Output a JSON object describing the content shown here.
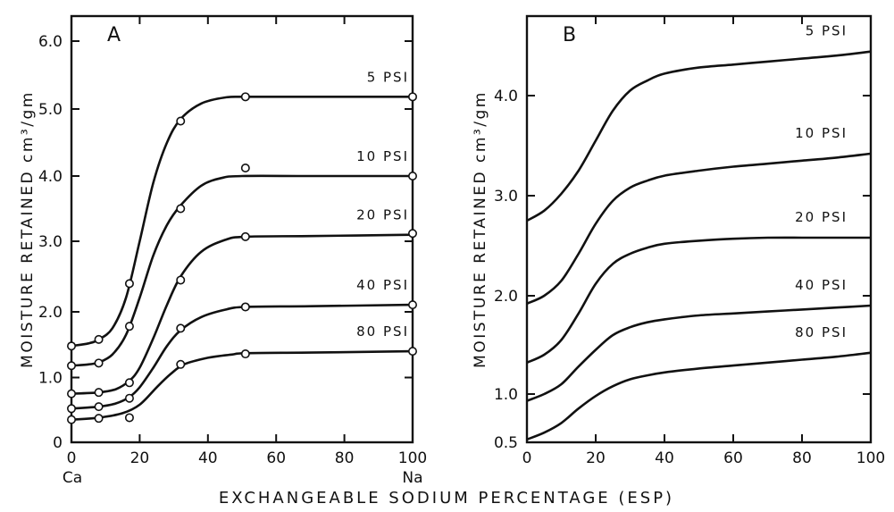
{
  "figure": {
    "xlabel": "EXCHANGEABLE SODIUM PERCENTAGE (ESP)"
  },
  "chart_data": [
    {
      "type": "line",
      "panel_label": "A",
      "ylabel": "MOISTURE RETAINED cm³/gm",
      "xlim": [
        0,
        100
      ],
      "ylim": [
        0,
        6.5
      ],
      "x_ticks": [
        0,
        20,
        40,
        60,
        80,
        100
      ],
      "x_tick_labels": [
        "0",
        "20",
        "40",
        "60",
        "80",
        "100"
      ],
      "x_end_labels": {
        "left": "Ca",
        "right": "Na"
      },
      "y_ticks": [
        0,
        1,
        2,
        3,
        4,
        5,
        6
      ],
      "y_tick_labels": [
        "0",
        "1.0",
        "2.0",
        "3.0",
        "4.0",
        "5.0",
        "6.0"
      ],
      "grid": false,
      "series": [
        {
          "name": "5 PSI",
          "points": [
            [
              0,
              1.48
            ],
            [
              8,
              1.58
            ],
            [
              17,
              2.4
            ],
            [
              32,
              4.82
            ],
            [
              51,
              5.18
            ],
            [
              100,
              5.18
            ]
          ],
          "curve": [
            [
              0,
              1.48
            ],
            [
              5,
              1.52
            ],
            [
              8,
              1.58
            ],
            [
              12,
              1.75
            ],
            [
              16,
              2.2
            ],
            [
              20,
              3.0
            ],
            [
              24,
              3.9
            ],
            [
              28,
              4.5
            ],
            [
              32,
              4.85
            ],
            [
              38,
              5.08
            ],
            [
              45,
              5.17
            ],
            [
              51,
              5.18
            ],
            [
              70,
              5.18
            ],
            [
              100,
              5.18
            ]
          ]
        },
        {
          "name": "10 PSI",
          "points": [
            [
              0,
              1.18
            ],
            [
              8,
              1.22
            ],
            [
              17,
              1.78
            ],
            [
              32,
              3.5
            ],
            [
              51,
              4.12
            ],
            [
              100,
              4.0
            ]
          ],
          "curve": [
            [
              0,
              1.18
            ],
            [
              5,
              1.2
            ],
            [
              8,
              1.23
            ],
            [
              12,
              1.35
            ],
            [
              16,
              1.65
            ],
            [
              20,
              2.2
            ],
            [
              24,
              2.8
            ],
            [
              28,
              3.25
            ],
            [
              32,
              3.55
            ],
            [
              38,
              3.85
            ],
            [
              44,
              3.97
            ],
            [
              50,
              4.0
            ],
            [
              70,
              4.0
            ],
            [
              100,
              4.0
            ]
          ]
        },
        {
          "name": "20 PSI",
          "points": [
            [
              0,
              0.75
            ],
            [
              8,
              0.77
            ],
            [
              17,
              0.92
            ],
            [
              32,
              2.45
            ],
            [
              51,
              3.07
            ],
            [
              100,
              3.12
            ]
          ],
          "curve": [
            [
              0,
              0.75
            ],
            [
              8,
              0.77
            ],
            [
              13,
              0.82
            ],
            [
              17,
              0.95
            ],
            [
              20,
              1.15
            ],
            [
              24,
              1.6
            ],
            [
              28,
              2.1
            ],
            [
              32,
              2.5
            ],
            [
              38,
              2.85
            ],
            [
              45,
              3.02
            ],
            [
              51,
              3.07
            ],
            [
              70,
              3.08
            ],
            [
              100,
              3.1
            ]
          ]
        },
        {
          "name": "40 PSI",
          "points": [
            [
              0,
              0.52
            ],
            [
              8,
              0.55
            ],
            [
              17,
              0.68
            ],
            [
              32,
              1.75
            ],
            [
              51,
              2.07
            ],
            [
              100,
              2.1
            ]
          ],
          "curve": [
            [
              0,
              0.52
            ],
            [
              8,
              0.55
            ],
            [
              13,
              0.6
            ],
            [
              17,
              0.7
            ],
            [
              20,
              0.85
            ],
            [
              24,
              1.15
            ],
            [
              28,
              1.48
            ],
            [
              32,
              1.72
            ],
            [
              38,
              1.92
            ],
            [
              45,
              2.03
            ],
            [
              51,
              2.07
            ],
            [
              70,
              2.08
            ],
            [
              100,
              2.1
            ]
          ]
        },
        {
          "name": "80 PSI",
          "points": [
            [
              0,
              0.35
            ],
            [
              8,
              0.37
            ],
            [
              17,
              0.38
            ],
            [
              32,
              1.2
            ],
            [
              51,
              1.36
            ],
            [
              100,
              1.4
            ]
          ],
          "curve": [
            [
              0,
              0.35
            ],
            [
              8,
              0.38
            ],
            [
              15,
              0.45
            ],
            [
              20,
              0.58
            ],
            [
              25,
              0.85
            ],
            [
              29,
              1.05
            ],
            [
              33,
              1.2
            ],
            [
              40,
              1.3
            ],
            [
              47,
              1.35
            ],
            [
              51,
              1.37
            ],
            [
              70,
              1.38
            ],
            [
              100,
              1.4
            ]
          ]
        }
      ]
    },
    {
      "type": "line",
      "panel_label": "B",
      "ylabel": "MOISTURE RETAINED cm³/gm",
      "xlim": [
        0,
        100
      ],
      "ylim": [
        0.5,
        4.5
      ],
      "x_ticks": [
        0,
        20,
        40,
        60,
        80,
        100
      ],
      "x_tick_labels": [
        "0",
        "20",
        "40",
        "60",
        "80",
        "100"
      ],
      "y_ticks": [
        0.5,
        1,
        2,
        3,
        4
      ],
      "y_tick_labels": [
        "0.5",
        "1.0",
        "2.0",
        "3.0",
        "4.0"
      ],
      "grid": false,
      "series": [
        {
          "name": "5 PSI",
          "curve": [
            [
              0,
              2.75
            ],
            [
              5,
              2.85
            ],
            [
              10,
              3.02
            ],
            [
              15,
              3.25
            ],
            [
              20,
              3.55
            ],
            [
              25,
              3.85
            ],
            [
              30,
              4.05
            ],
            [
              35,
              4.15
            ],
            [
              40,
              4.22
            ],
            [
              50,
              4.28
            ],
            [
              60,
              4.31
            ],
            [
              70,
              4.34
            ],
            [
              80,
              4.37
            ],
            [
              90,
              4.4
            ],
            [
              100,
              4.44
            ]
          ]
        },
        {
          "name": "10 PSI",
          "curve": [
            [
              0,
              1.92
            ],
            [
              5,
              2.0
            ],
            [
              10,
              2.15
            ],
            [
              15,
              2.42
            ],
            [
              20,
              2.72
            ],
            [
              25,
              2.95
            ],
            [
              30,
              3.08
            ],
            [
              35,
              3.15
            ],
            [
              40,
              3.2
            ],
            [
              50,
              3.25
            ],
            [
              60,
              3.29
            ],
            [
              70,
              3.32
            ],
            [
              80,
              3.35
            ],
            [
              90,
              3.38
            ],
            [
              100,
              3.42
            ]
          ]
        },
        {
          "name": "20 PSI",
          "curve": [
            [
              0,
              1.32
            ],
            [
              5,
              1.4
            ],
            [
              10,
              1.55
            ],
            [
              15,
              1.82
            ],
            [
              20,
              2.12
            ],
            [
              25,
              2.32
            ],
            [
              30,
              2.42
            ],
            [
              35,
              2.48
            ],
            [
              40,
              2.52
            ],
            [
              50,
              2.55
            ],
            [
              60,
              2.57
            ],
            [
              70,
              2.58
            ],
            [
              80,
              2.58
            ],
            [
              90,
              2.58
            ],
            [
              100,
              2.58
            ]
          ]
        },
        {
          "name": "40 PSI",
          "curve": [
            [
              0,
              0.93
            ],
            [
              5,
              1.0
            ],
            [
              10,
              1.1
            ],
            [
              15,
              1.28
            ],
            [
              20,
              1.45
            ],
            [
              25,
              1.6
            ],
            [
              30,
              1.68
            ],
            [
              35,
              1.73
            ],
            [
              40,
              1.76
            ],
            [
              50,
              1.8
            ],
            [
              60,
              1.82
            ],
            [
              70,
              1.84
            ],
            [
              80,
              1.86
            ],
            [
              90,
              1.88
            ],
            [
              100,
              1.9
            ]
          ]
        },
        {
          "name": "80 PSI",
          "curve": [
            [
              0,
              0.53
            ],
            [
              5,
              0.6
            ],
            [
              10,
              0.7
            ],
            [
              15,
              0.85
            ],
            [
              20,
              0.98
            ],
            [
              25,
              1.08
            ],
            [
              30,
              1.15
            ],
            [
              35,
              1.19
            ],
            [
              40,
              1.22
            ],
            [
              50,
              1.26
            ],
            [
              60,
              1.29
            ],
            [
              70,
              1.32
            ],
            [
              80,
              1.35
            ],
            [
              90,
              1.38
            ],
            [
              100,
              1.42
            ]
          ]
        }
      ]
    }
  ]
}
